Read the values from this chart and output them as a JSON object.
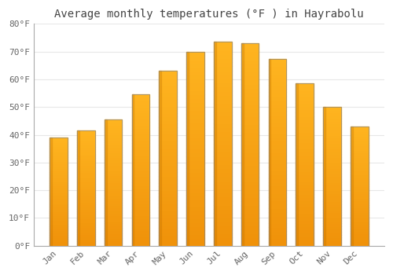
{
  "title": "Average monthly temperatures (°F ) in Hayrabolu",
  "months": [
    "Jan",
    "Feb",
    "Mar",
    "Apr",
    "May",
    "Jun",
    "Jul",
    "Aug",
    "Sep",
    "Oct",
    "Nov",
    "Dec"
  ],
  "values": [
    39,
    41.5,
    45.5,
    54.5,
    63,
    70,
    73.5,
    73,
    67.5,
    58.5,
    50,
    43
  ],
  "bar_color_top": "#FFB020",
  "bar_color_bottom": "#F0920A",
  "bar_edge_color": "#888888",
  "background_color": "#ffffff",
  "plot_bg_color": "#ffffff",
  "ylim": [
    0,
    80
  ],
  "yticks": [
    0,
    10,
    20,
    30,
    40,
    50,
    60,
    70,
    80
  ],
  "ytick_labels": [
    "0°F",
    "10°F",
    "20°F",
    "30°F",
    "40°F",
    "50°F",
    "60°F",
    "70°F",
    "80°F"
  ],
  "grid_color": "#e8e8e8",
  "title_fontsize": 10,
  "tick_fontsize": 8,
  "tick_color": "#666666",
  "title_color": "#444444",
  "spine_color": "#aaaaaa"
}
